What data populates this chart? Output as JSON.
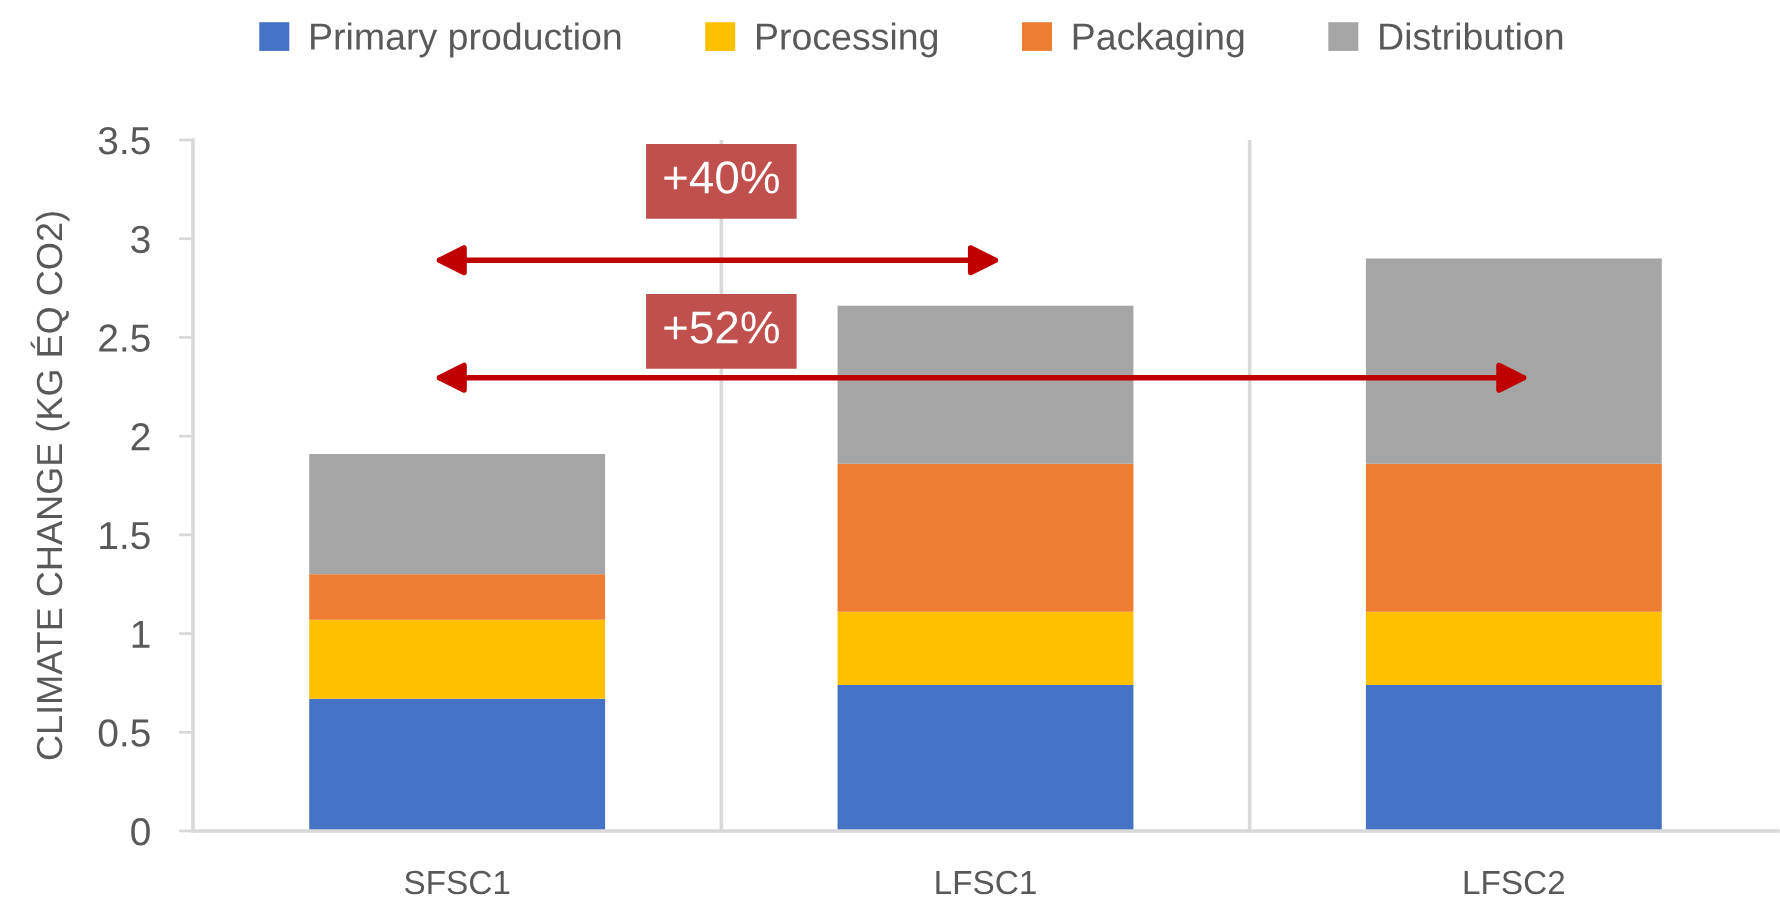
{
  "chart_data": {
    "type": "bar",
    "stacked": true,
    "categories": [
      "SFSC1",
      "LFSC1",
      "LFSC2"
    ],
    "series": [
      {
        "name": "Primary production",
        "color": "#4472c4",
        "values": [
          0.67,
          0.74,
          0.74
        ]
      },
      {
        "name": "Processing",
        "color": "#ffc000",
        "values": [
          0.4,
          0.37,
          0.37
        ]
      },
      {
        "name": "Packaging",
        "color": "#ed7d31",
        "values": [
          0.23,
          0.75,
          0.75
        ]
      },
      {
        "name": "Distribution",
        "color": "#a5a5a5",
        "values": [
          0.61,
          0.8,
          1.04
        ]
      }
    ],
    "ylabel": "CLIMATE CHANGE (KG ÉQ CO2)",
    "ylim": [
      0,
      3.5
    ],
    "yticks": [
      0,
      0.5,
      1,
      1.5,
      2,
      2.5,
      3,
      3.5
    ],
    "grid": "x",
    "legend": "top",
    "annotations": [
      "+40%",
      "+52%"
    ]
  }
}
